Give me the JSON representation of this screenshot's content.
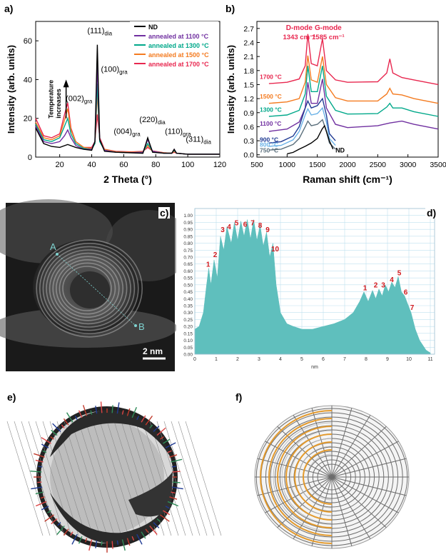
{
  "panels": {
    "a": "a)",
    "b": "b)",
    "c": "c)",
    "d": "d)",
    "e": "e)",
    "f": "f)"
  },
  "chart_data": [
    {
      "id": "a",
      "type": "line",
      "xlabel": "2 Theta (°)",
      "ylabel": "Intensity (arb. units)",
      "xlim": [
        5,
        120
      ],
      "ylim": [
        0,
        70
      ],
      "xticks": [
        20,
        40,
        60,
        80,
        100,
        120
      ],
      "yticks": [
        0,
        20,
        40,
        60
      ],
      "legend_position": "top-right",
      "series": [
        {
          "name": "ND",
          "color": "#000000",
          "x": [
            5,
            10,
            15,
            20,
            25,
            30,
            35,
            40,
            42,
            43.5,
            45,
            48,
            55,
            65,
            72,
            75,
            78,
            85,
            90,
            91.5,
            93,
            100,
            110,
            120
          ],
          "y": [
            15,
            7,
            5.5,
            5,
            6.5,
            5,
            4,
            3.5,
            8,
            58,
            9,
            3,
            2.5,
            2.2,
            2,
            10,
            2.5,
            2,
            2,
            4,
            2,
            1.5,
            1.5,
            1.5
          ]
        },
        {
          "name": "annealed at 1100 °C",
          "color": "#7030a0",
          "x": [
            5,
            10,
            15,
            20,
            23,
            25,
            27,
            30,
            35,
            40,
            42,
            43.5,
            45,
            48,
            55,
            65,
            72,
            75,
            78,
            85,
            90,
            91.5,
            93,
            100,
            110,
            120
          ],
          "y": [
            16,
            8,
            7,
            8,
            11,
            14,
            10,
            6,
            4,
            4,
            8,
            47,
            9,
            3.5,
            2.5,
            2.3,
            2.5,
            9,
            3,
            2,
            2,
            4,
            2,
            1.5,
            1.5,
            1.5
          ]
        },
        {
          "name": "annealed at 1300 °C",
          "color": "#00a88a",
          "x": [
            5,
            10,
            15,
            20,
            23,
            25,
            27,
            30,
            35,
            40,
            42,
            43.5,
            45,
            48,
            55,
            65,
            72,
            75,
            78,
            85,
            90,
            91.5,
            93,
            100,
            110,
            120
          ],
          "y": [
            17,
            9,
            8,
            10,
            16,
            20,
            12,
            7,
            4.5,
            4,
            7,
            38,
            8,
            3.5,
            2.5,
            2.3,
            2.5,
            7,
            3,
            2,
            2,
            3.5,
            2,
            1.5,
            1.5,
            1.5
          ]
        },
        {
          "name": "annealed at 1500 °C",
          "color": "#f47b20",
          "x": [
            5,
            10,
            15,
            20,
            23,
            25,
            27,
            30,
            35,
            40,
            42,
            43.5,
            45,
            48,
            55,
            65,
            72,
            75,
            78,
            85,
            90,
            91.5,
            93,
            100,
            110,
            120
          ],
          "y": [
            18,
            10,
            9,
            11,
            19,
            25,
            14,
            8,
            5,
            4.5,
            7,
            33,
            9,
            4,
            2.8,
            2.5,
            2.8,
            6,
            3,
            2.2,
            2,
            3,
            2,
            1.5,
            1.5,
            1.5
          ]
        },
        {
          "name": "annealed at 1700 °C",
          "color": "#e8274f",
          "x": [
            5,
            10,
            15,
            20,
            23,
            25,
            27,
            30,
            35,
            40,
            42,
            43.5,
            45,
            48,
            55,
            65,
            72,
            75,
            78,
            85,
            90,
            91.5,
            93,
            100,
            110,
            120
          ],
          "y": [
            20,
            11,
            10,
            12,
            22,
            28,
            15,
            8,
            5,
            5,
            8,
            22,
            10,
            4,
            3,
            2.7,
            3,
            5,
            3.2,
            2.3,
            2,
            2.5,
            2,
            1.5,
            1.5,
            1.5
          ]
        }
      ],
      "annotations": [
        {
          "text": "(111)",
          "sub": "dia",
          "x": 43.5,
          "y": 64
        },
        {
          "text": "(100)",
          "sub": "gra",
          "x": 52,
          "y": 44
        },
        {
          "text": "(002)",
          "sub": "gra",
          "x": 30,
          "y": 29
        },
        {
          "text": "(004)",
          "sub": "gra",
          "x": 60,
          "y": 12
        },
        {
          "text": "(220)",
          "sub": "dia",
          "x": 76,
          "y": 18
        },
        {
          "text": "(110)",
          "sub": "gra",
          "x": 92,
          "y": 12
        },
        {
          "text": "(311)",
          "sub": "dia",
          "x": 105,
          "y": 8
        }
      ],
      "arrow_label": [
        "Temperature",
        "increases"
      ]
    },
    {
      "id": "b",
      "type": "line",
      "xlabel": "Raman shift (cm⁻¹)",
      "ylabel": "Intensity (arb. units)",
      "xlim": [
        500,
        3500
      ],
      "ylim": [
        -0.05,
        2.85
      ],
      "xticks": [
        500,
        1000,
        1500,
        2000,
        2500,
        3000,
        3500
      ],
      "yticks": [
        0.0,
        0.3,
        0.6,
        0.9,
        1.2,
        1.5,
        1.8,
        2.1,
        2.4,
        2.7
      ],
      "peak_labels": [
        {
          "text": "D-mode",
          "sub": "1343 cm⁻¹",
          "x": 1343
        },
        {
          "text": "G-mode",
          "sub": "1585 cm⁻¹",
          "x": 1585
        }
      ],
      "series": [
        {
          "name": "1700 °C",
          "color": "#e8274f",
          "x": [
            700,
            1000,
            1200,
            1300,
            1343,
            1400,
            1500,
            1585,
            1650,
            1800,
            2000,
            2500,
            2650,
            2700,
            2750,
            2900,
            3100,
            3500
          ],
          "y": [
            1.52,
            1.55,
            1.62,
            1.9,
            2.58,
            1.95,
            1.9,
            2.48,
            1.8,
            1.6,
            1.55,
            1.56,
            1.75,
            2.05,
            1.75,
            1.65,
            1.6,
            1.5
          ]
        },
        {
          "name": "1500 °C",
          "color": "#f47b20",
          "x": [
            700,
            1000,
            1200,
            1300,
            1343,
            1400,
            1500,
            1585,
            1650,
            1800,
            2000,
            2500,
            2650,
            2700,
            2750,
            2900,
            3100,
            3500
          ],
          "y": [
            1.1,
            1.13,
            1.2,
            1.55,
            2.12,
            1.6,
            1.55,
            2.1,
            1.5,
            1.22,
            1.15,
            1.15,
            1.3,
            1.42,
            1.3,
            1.28,
            1.2,
            1.1
          ]
        },
        {
          "name": "1300 °C",
          "color": "#00a88a",
          "x": [
            700,
            1000,
            1200,
            1300,
            1343,
            1400,
            1500,
            1585,
            1650,
            1800,
            2000,
            2500,
            2650,
            2700,
            2750,
            2900,
            3100,
            3500
          ],
          "y": [
            0.82,
            0.85,
            0.95,
            1.3,
            1.9,
            1.35,
            1.35,
            1.9,
            1.25,
            0.95,
            0.87,
            0.88,
            1.02,
            1.1,
            1.0,
            1.0,
            0.92,
            0.82
          ]
        },
        {
          "name": "1100 °C",
          "color": "#7030a0",
          "x": [
            700,
            1000,
            1200,
            1300,
            1343,
            1400,
            1500,
            1585,
            1650,
            1800,
            2000,
            2500,
            2700,
            2900,
            3100,
            3500
          ],
          "y": [
            0.5,
            0.55,
            0.7,
            1.0,
            1.55,
            1.1,
            1.1,
            1.62,
            1.0,
            0.65,
            0.58,
            0.62,
            0.68,
            0.72,
            0.65,
            0.55
          ]
        },
        {
          "name": "900 °C",
          "color": "#1f3a93",
          "x": [
            700,
            900,
            1100,
            1200,
            1300,
            1343,
            1400,
            1500,
            1585,
            1650,
            1700,
            1800
          ],
          "y": [
            0.25,
            0.28,
            0.4,
            0.6,
            1.0,
            1.15,
            1.0,
            1.05,
            1.2,
            0.85,
            0.45,
            0.3
          ]
        },
        {
          "name": "800 °C",
          "color": "#6ab2e7",
          "x": [
            700,
            900,
            1100,
            1200,
            1300,
            1343,
            1400,
            1500,
            1585,
            1650,
            1700,
            1800
          ],
          "y": [
            0.18,
            0.2,
            0.32,
            0.5,
            0.85,
            0.98,
            0.85,
            0.88,
            1.0,
            0.7,
            0.35,
            0.2
          ]
        },
        {
          "name": "750 °C",
          "color": "#5b6f7c",
          "x": [
            700,
            900,
            1100,
            1200,
            1300,
            1343,
            1400,
            1500,
            1585,
            1650,
            1700,
            1800
          ],
          "y": [
            0.1,
            0.12,
            0.22,
            0.35,
            0.6,
            0.72,
            0.62,
            0.65,
            0.75,
            0.5,
            0.25,
            0.12
          ]
        },
        {
          "name": "ND",
          "color": "#000000",
          "x": [
            1000,
            1100,
            1200,
            1300,
            1400,
            1500,
            1580,
            1620,
            1650,
            1700,
            1760
          ],
          "y": [
            0.02,
            0.05,
            0.12,
            0.18,
            0.25,
            0.35,
            0.55,
            0.62,
            0.5,
            0.3,
            0.12
          ]
        }
      ]
    },
    {
      "id": "d",
      "type": "area",
      "xlabel": "nm",
      "xlim": [
        0,
        11.2
      ],
      "ylim": [
        0,
        1.05
      ],
      "xticks": [
        0,
        1,
        2,
        3,
        4,
        5,
        6,
        7,
        8,
        9,
        10,
        11
      ],
      "yticks": [
        0,
        0.05,
        0.1,
        0.15,
        0.2,
        0.25,
        0.3,
        0.35,
        0.4,
        0.45,
        0.5,
        0.55,
        0.6,
        0.65,
        0.7,
        0.75,
        0.8,
        0.85,
        0.9,
        0.95,
        1.0
      ],
      "color": "#5fbfbd",
      "x": [
        0,
        0.2,
        0.4,
        0.55,
        0.65,
        0.75,
        0.9,
        1.05,
        1.2,
        1.35,
        1.5,
        1.7,
        1.85,
        2.0,
        2.15,
        2.3,
        2.45,
        2.6,
        2.75,
        2.9,
        3.05,
        3.2,
        3.35,
        3.5,
        3.65,
        3.8,
        4.0,
        4.3,
        4.6,
        5.0,
        5.5,
        6.0,
        6.5,
        7.0,
        7.4,
        7.7,
        7.9,
        8.1,
        8.3,
        8.45,
        8.6,
        8.75,
        8.9,
        9.05,
        9.2,
        9.35,
        9.5,
        9.65,
        9.8,
        9.95,
        10.1,
        10.3,
        10.5,
        10.8,
        11.0
      ],
      "y": [
        0.18,
        0.2,
        0.3,
        0.5,
        0.62,
        0.5,
        0.68,
        0.55,
        0.85,
        0.75,
        0.92,
        0.8,
        0.95,
        0.82,
        0.96,
        0.85,
        0.97,
        0.83,
        0.97,
        0.82,
        0.93,
        0.78,
        0.88,
        0.7,
        0.8,
        0.5,
        0.3,
        0.22,
        0.2,
        0.18,
        0.18,
        0.2,
        0.22,
        0.25,
        0.3,
        0.38,
        0.45,
        0.38,
        0.46,
        0.4,
        0.47,
        0.42,
        0.5,
        0.45,
        0.52,
        0.48,
        0.56,
        0.45,
        0.42,
        0.36,
        0.3,
        0.18,
        0.1,
        0.03,
        0.01
      ],
      "peak_labels": [
        {
          "text": "1",
          "x": 0.62,
          "y": 0.63
        },
        {
          "text": "2",
          "x": 0.95,
          "y": 0.7
        },
        {
          "text": "3",
          "x": 1.3,
          "y": 0.88
        },
        {
          "text": "4",
          "x": 1.6,
          "y": 0.9
        },
        {
          "text": "5",
          "x": 1.95,
          "y": 0.93
        },
        {
          "text": "6",
          "x": 2.35,
          "y": 0.92
        },
        {
          "text": "7",
          "x": 2.7,
          "y": 0.93
        },
        {
          "text": "8",
          "x": 3.05,
          "y": 0.91
        },
        {
          "text": "9",
          "x": 3.4,
          "y": 0.88
        },
        {
          "text": "10",
          "x": 3.75,
          "y": 0.74
        },
        {
          "text": "1",
          "x": 7.95,
          "y": 0.46
        },
        {
          "text": "2",
          "x": 8.45,
          "y": 0.48
        },
        {
          "text": "3",
          "x": 8.8,
          "y": 0.48
        },
        {
          "text": "4",
          "x": 9.2,
          "y": 0.52
        },
        {
          "text": "5",
          "x": 9.55,
          "y": 0.57
        },
        {
          "text": "6",
          "x": 9.85,
          "y": 0.43
        },
        {
          "text": "7",
          "x": 10.15,
          "y": 0.32
        }
      ]
    }
  ],
  "tem": {
    "point_a": "A",
    "point_b": "B",
    "scale_bar": "2 nm"
  }
}
